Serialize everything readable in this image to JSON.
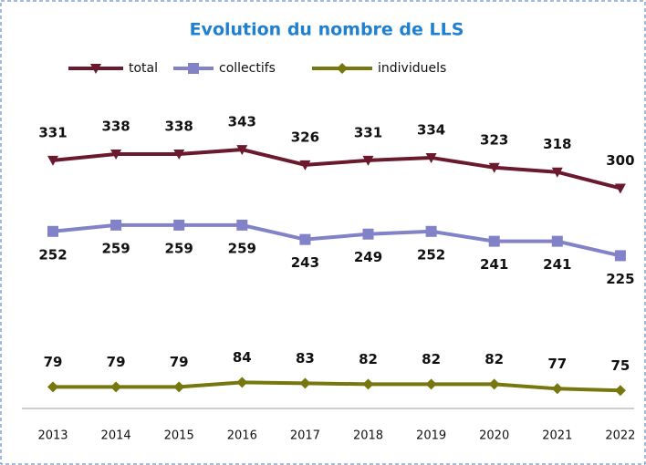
{
  "chart_data": {
    "type": "line",
    "title": "Evolution du nombre de LLS",
    "categories": [
      "2013",
      "2014",
      "2015",
      "2016",
      "2017",
      "2018",
      "2019",
      "2020",
      "2021",
      "2022"
    ],
    "series": [
      {
        "name": "total",
        "color": "#6b1a2e",
        "marker": "triangle-down",
        "values": [
          331,
          338,
          338,
          343,
          326,
          331,
          334,
          323,
          318,
          300
        ]
      },
      {
        "name": "collectifs",
        "color": "#8282c8",
        "marker": "square",
        "values": [
          252,
          259,
          259,
          259,
          243,
          249,
          252,
          241,
          241,
          225
        ]
      },
      {
        "name": "individuels",
        "color": "#77770f",
        "marker": "diamond",
        "values": [
          79,
          79,
          79,
          84,
          83,
          82,
          82,
          82,
          77,
          75
        ]
      }
    ],
    "ylim": [
      55,
      408
    ],
    "legend": "top"
  }
}
